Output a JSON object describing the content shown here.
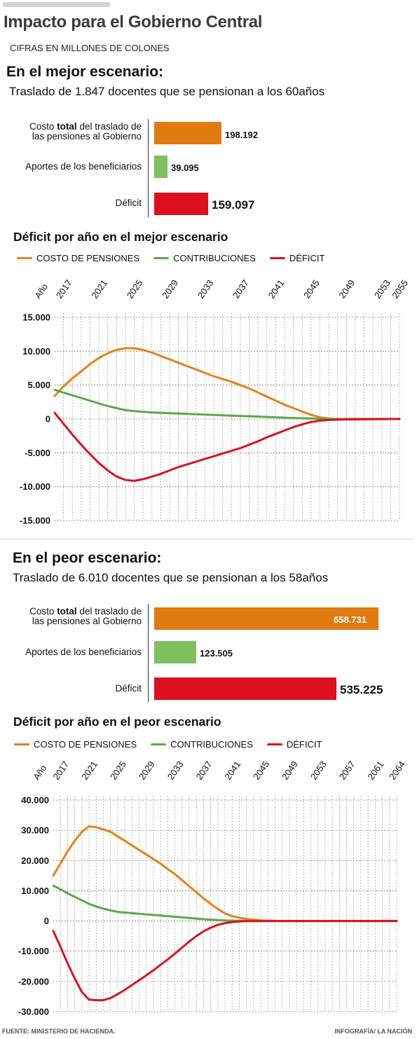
{
  "header": {
    "title": "Impacto para el Gobierno Central",
    "units": "CIFRAS EN MILLONES DE COLONES"
  },
  "colors": {
    "costo": "#e07b0f",
    "aportes": "#7fbf5f",
    "deficit": "#dd1021",
    "line_costo": "#e48215",
    "line_contrib": "#5aa84a",
    "line_deficit": "#d9131f"
  },
  "best": {
    "title": "En el mejor escenario:",
    "subtitle": "Traslado de 1.847 docentes que se pensionan a los 60años",
    "bars": [
      {
        "label_pre": "Costo ",
        "label_bold": "total",
        "label_post": " del traslado de",
        "label_line2": "las pensiones al Gobierno",
        "value_text": "198.192",
        "value": 198192
      },
      {
        "label": "Aportes de los beneficiarios",
        "value_text": "39.095",
        "value": 39095
      },
      {
        "label": "Déficit",
        "value_text": "159.097",
        "value": 159097
      }
    ],
    "chart_title": "Déficit por año en el mejor escenario"
  },
  "worst": {
    "title": "En el peor escenario:",
    "subtitle": "Traslado de 6.010 docentes que se pensionan a los 58años",
    "bars": [
      {
        "label_pre": "Costo ",
        "label_bold": "total",
        "label_post": " del traslado de",
        "label_line2": "las pensiones al Gobierno",
        "value_text": "658.731",
        "value": 658731
      },
      {
        "label": "Aportes de los beneficiarios",
        "value_text": "123.505",
        "value": 123505
      },
      {
        "label": "Déficit",
        "value_text": "535.225",
        "value": 535225
      }
    ],
    "chart_title": "Déficit por año en el peor escenario"
  },
  "legend": {
    "costo": "COSTO DE PENSIONES",
    "contrib": "CONTRIBUCIONES",
    "deficit": "DÉFICIT"
  },
  "footer": {
    "source": "FUENTE: MINISTERIO DE HACIENDA.",
    "credit": "INFOGRAFÍA/ LA NACIÓN"
  },
  "chart_data": [
    {
      "type": "line",
      "title": "Déficit por año en el mejor escenario",
      "x_label": "Año",
      "x_ticks": [
        "2017",
        "2021",
        "2025",
        "2029",
        "2033",
        "2037",
        "2041",
        "2045",
        "2049",
        "2053",
        "2055"
      ],
      "xlim": [
        2016,
        2055
      ],
      "ylim": [
        -15000,
        15000
      ],
      "y_ticks": [
        15000,
        10000,
        5000,
        0,
        -5000,
        -10000,
        -15000
      ],
      "y_tick_labels": [
        "15.000",
        "10.000",
        "5.000",
        "0",
        "-5.000",
        "-10.000",
        "-15.000"
      ],
      "grid": "vertical dotted per year, horizontal dotted per tick",
      "legend_position": "top",
      "x": [
        2016,
        2017,
        2018,
        2019,
        2020,
        2021,
        2022,
        2023,
        2024,
        2025,
        2026,
        2027,
        2028,
        2029,
        2030,
        2031,
        2032,
        2033,
        2034,
        2035,
        2036,
        2037,
        2038,
        2039,
        2040,
        2041,
        2042,
        2043,
        2044,
        2045,
        2046,
        2047,
        2048,
        2049,
        2050,
        2051,
        2052,
        2053,
        2054,
        2055
      ],
      "series": [
        {
          "name": "COSTO DE PENSIONES",
          "values": [
            3400,
            4800,
            6000,
            7000,
            8100,
            9000,
            9700,
            10200,
            10450,
            10450,
            10200,
            9800,
            9300,
            8800,
            8300,
            7800,
            7300,
            6800,
            6300,
            5900,
            5500,
            5000,
            4500,
            3900,
            3300,
            2700,
            2100,
            1600,
            1100,
            600,
            250,
            50,
            -20,
            -60,
            -80,
            -60,
            -40,
            -20,
            -10,
            0
          ]
        },
        {
          "name": "CONTRIBUCIONES",
          "values": [
            4300,
            3900,
            3500,
            3100,
            2700,
            2300,
            1900,
            1600,
            1300,
            1150,
            1050,
            950,
            900,
            850,
            800,
            750,
            700,
            650,
            600,
            550,
            500,
            450,
            400,
            350,
            300,
            250,
            200,
            150,
            100,
            60,
            30,
            10,
            0,
            0,
            0,
            0,
            0,
            0,
            0,
            0
          ]
        },
        {
          "name": "DÉFICIT",
          "values": [
            900,
            -700,
            -2300,
            -3800,
            -5200,
            -6500,
            -7600,
            -8500,
            -9000,
            -9150,
            -8900,
            -8500,
            -8100,
            -7600,
            -7100,
            -6700,
            -6300,
            -5900,
            -5500,
            -5100,
            -4700,
            -4300,
            -3800,
            -3300,
            -2700,
            -2200,
            -1700,
            -1200,
            -800,
            -450,
            -250,
            -150,
            -100,
            -60,
            -40,
            -30,
            -20,
            -10,
            -5,
            0
          ]
        }
      ]
    },
    {
      "type": "line",
      "title": "Déficit por año en el peor escenario",
      "x_label": "Año",
      "x_ticks": [
        "2017",
        "2021",
        "2025",
        "2029",
        "2033",
        "2037",
        "2041",
        "2045",
        "2049",
        "2053",
        "2057",
        "2061",
        "2064"
      ],
      "xlim": [
        2016,
        2064
      ],
      "ylim": [
        -30000,
        40000
      ],
      "y_ticks": [
        40000,
        30000,
        20000,
        10000,
        0,
        -10000,
        -20000,
        -30000
      ],
      "y_tick_labels": [
        "40.000",
        "30.000",
        "20.000",
        "10.000",
        "0",
        "-10.000",
        "-20.000",
        "-30.000"
      ],
      "grid": "vertical dotted per year, horizontal dotted per tick",
      "legend_position": "top",
      "x": [
        2016,
        2017,
        2018,
        2019,
        2020,
        2021,
        2022,
        2023,
        2024,
        2025,
        2026,
        2027,
        2028,
        2029,
        2030,
        2031,
        2032,
        2033,
        2034,
        2035,
        2036,
        2037,
        2038,
        2039,
        2040,
        2041,
        2042,
        2043,
        2044,
        2045,
        2046,
        2047,
        2048,
        2049,
        2050,
        2051,
        2052,
        2053,
        2054,
        2055,
        2056,
        2057,
        2058,
        2059,
        2060,
        2061,
        2062,
        2063,
        2064
      ],
      "series": [
        {
          "name": "COSTO DE PENSIONES",
          "values": [
            15000,
            19000,
            23000,
            26500,
            29500,
            31300,
            31000,
            30300,
            29500,
            28000,
            26500,
            25000,
            23500,
            22000,
            20500,
            19000,
            17200,
            15500,
            13500,
            11500,
            9500,
            7500,
            5700,
            4000,
            2500,
            1600,
            1100,
            700,
            400,
            200,
            100,
            50,
            0,
            0,
            0,
            0,
            0,
            0,
            0,
            0,
            0,
            0,
            0,
            0,
            0,
            0,
            0,
            0,
            0
          ]
        },
        {
          "name": "CONTRIBUCIONES",
          "values": [
            11700,
            10500,
            9200,
            8000,
            6800,
            5700,
            4800,
            4100,
            3500,
            3000,
            2800,
            2600,
            2400,
            2200,
            2000,
            1800,
            1600,
            1400,
            1200,
            1000,
            800,
            600,
            450,
            300,
            200,
            120,
            60,
            20,
            0,
            0,
            0,
            0,
            0,
            0,
            0,
            0,
            0,
            0,
            0,
            0,
            0,
            0,
            0,
            0,
            0,
            0,
            0,
            0,
            0
          ]
        },
        {
          "name": "DÉFICIT",
          "values": [
            -3300,
            -8500,
            -14000,
            -19000,
            -23500,
            -26000,
            -26200,
            -26200,
            -25500,
            -24200,
            -22800,
            -21200,
            -19600,
            -18000,
            -16300,
            -14500,
            -12700,
            -10800,
            -8800,
            -6800,
            -5000,
            -3400,
            -2200,
            -1300,
            -700,
            -350,
            -150,
            -60,
            -20,
            0,
            0,
            0,
            0,
            0,
            0,
            0,
            0,
            0,
            0,
            0,
            0,
            0,
            0,
            0,
            0,
            0,
            0,
            0,
            0
          ]
        }
      ]
    }
  ]
}
